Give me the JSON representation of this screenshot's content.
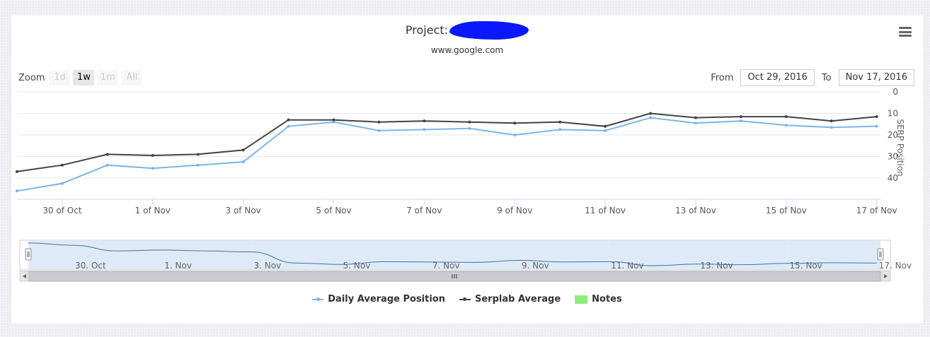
{
  "header": {
    "title_prefix": "Project:",
    "subtitle": "www.google.com"
  },
  "zoom": {
    "label": "Zoom",
    "buttons": [
      {
        "label": "1d",
        "active": false
      },
      {
        "label": "1w",
        "active": true
      },
      {
        "label": "1m",
        "active": false
      },
      {
        "label": "All",
        "active": false
      }
    ]
  },
  "range": {
    "from_label": "From",
    "from_value": "Oct 29, 2016",
    "to_label": "To",
    "to_value": "Nov 17, 2016"
  },
  "colors": {
    "daily": "#7cb5ec",
    "serplab": "#434348",
    "notes": "#90ed7d",
    "navigator_fill": "#d8e6f6",
    "redaction": "#0a18ff"
  },
  "legend": [
    {
      "name": "Daily Average Position",
      "icon": "line-marker"
    },
    {
      "name": "Serplab Average",
      "icon": "line-marker"
    },
    {
      "name": "Notes",
      "icon": "square"
    }
  ],
  "chart_data": {
    "type": "line",
    "ylabel": "SERP Position",
    "yreversed": true,
    "ylim": [
      0,
      40
    ],
    "yticks": [
      0,
      10,
      20,
      30,
      40
    ],
    "xlim": [
      "2016-10-29T00:00",
      "2016-11-17T02:00"
    ],
    "xticks": [
      {
        "date": "2016-10-30",
        "label": "30 of Oct"
      },
      {
        "date": "2016-11-01",
        "label": "1 of Nov"
      },
      {
        "date": "2016-11-03",
        "label": "3 of Nov"
      },
      {
        "date": "2016-11-05",
        "label": "5 of Nov"
      },
      {
        "date": "2016-11-07",
        "label": "7 of Nov"
      },
      {
        "date": "2016-11-09",
        "label": "9 of Nov"
      },
      {
        "date": "2016-11-11",
        "label": "11 of Nov"
      },
      {
        "date": "2016-11-13",
        "label": "13 of Nov"
      },
      {
        "date": "2016-11-15",
        "label": "15 of Nov"
      },
      {
        "date": "2016-11-17",
        "label": "17 of Nov"
      }
    ],
    "x": [
      "2016-10-29",
      "2016-10-30",
      "2016-10-31",
      "2016-11-01",
      "2016-11-02",
      "2016-11-03",
      "2016-11-04",
      "2016-11-05",
      "2016-11-06",
      "2016-11-07",
      "2016-11-08",
      "2016-11-09",
      "2016-11-10",
      "2016-11-11",
      "2016-11-12",
      "2016-11-13",
      "2016-11-14",
      "2016-11-15",
      "2016-11-16",
      "2016-11-17"
    ],
    "series": [
      {
        "name": "Daily Average Position",
        "values": [
          46,
          42.5,
          34,
          35.5,
          34,
          32.5,
          16,
          14,
          18,
          17.5,
          17,
          20,
          17.5,
          18,
          12,
          14.5,
          13.5,
          15.5,
          16.5,
          16
        ]
      },
      {
        "name": "Serplab Average",
        "values": [
          37,
          34,
          29,
          29.5,
          29,
          27,
          13,
          13,
          14,
          13.5,
          14,
          14.5,
          14,
          16,
          10,
          12,
          11.5,
          11.5,
          13.5,
          11.5
        ]
      }
    ],
    "legend_position": "bottom",
    "grid": true,
    "navigator": {
      "labels": [
        {
          "date": "2016-10-30",
          "label": "30. Oct"
        },
        {
          "date": "2016-11-01",
          "label": "1. Nov"
        },
        {
          "date": "2016-11-03",
          "label": "3. Nov"
        },
        {
          "date": "2016-11-05",
          "label": "5. Nov"
        },
        {
          "date": "2016-11-07",
          "label": "7. Nov"
        },
        {
          "date": "2016-11-09",
          "label": "9. Nov"
        },
        {
          "date": "2016-11-11",
          "label": "11. Nov"
        },
        {
          "date": "2016-11-13",
          "label": "13. Nov"
        },
        {
          "date": "2016-11-15",
          "label": "15. Nov"
        },
        {
          "date": "2016-11-17",
          "label": "17. Nov"
        }
      ]
    }
  }
}
